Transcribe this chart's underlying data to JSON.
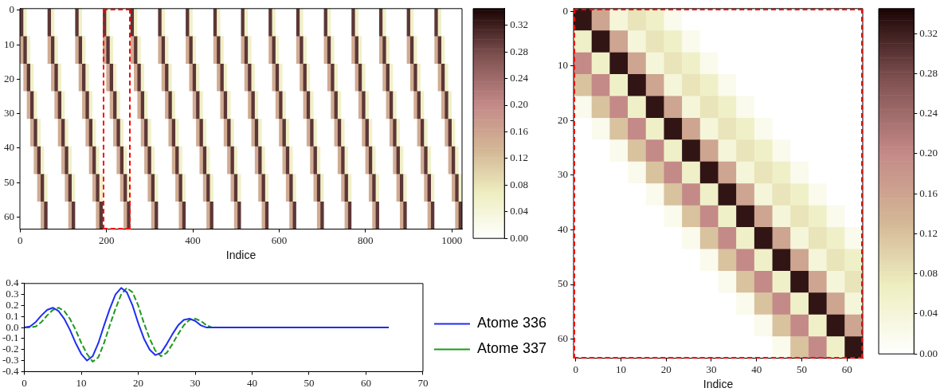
{
  "chart_data": [
    {
      "type": "heatmap",
      "xlabel": "Indice",
      "xlim": [
        -0.5,
        1023.5
      ],
      "xticks": [
        0,
        200,
        400,
        600,
        800,
        1000
      ],
      "ylim": [
        63.5,
        -0.5
      ],
      "yticks": [
        0,
        10,
        20,
        30,
        40,
        50,
        60
      ],
      "clim": [
        0,
        0.345
      ],
      "cticks": [
        {
          "value": 0,
          "label": "0.00"
        },
        {
          "value": 0.04,
          "label": "0.04"
        },
        {
          "value": 0.08,
          "label": "0.08"
        },
        {
          "value": 0.12,
          "label": "0.12"
        },
        {
          "value": 0.16,
          "label": "0.16"
        },
        {
          "value": 0.2,
          "label": "0.20"
        },
        {
          "value": 0.24,
          "label": "0.24"
        },
        {
          "value": 0.28,
          "label": "0.28"
        },
        {
          "value": 0.32,
          "label": "0.32"
        }
      ],
      "cells": [
        [
          0.3,
          0.06,
          0,
          0,
          0,
          0,
          0,
          0,
          0.3,
          0.06,
          0,
          0,
          0,
          0,
          0,
          0,
          0.3,
          0.06,
          0,
          0,
          0,
          0,
          0,
          0,
          0.3,
          0.06,
          0,
          0,
          0,
          0,
          0,
          0,
          0.3,
          0.06,
          0,
          0,
          0,
          0,
          0,
          0,
          0.3,
          0.06,
          0,
          0,
          0,
          0,
          0,
          0,
          0.3,
          0.06,
          0,
          0,
          0,
          0,
          0,
          0,
          0.3,
          0.06,
          0,
          0,
          0,
          0,
          0,
          0,
          0.3,
          0.06,
          0,
          0,
          0,
          0,
          0,
          0,
          0.3,
          0.06,
          0,
          0,
          0,
          0,
          0,
          0,
          0.3,
          0.06,
          0,
          0,
          0,
          0,
          0,
          0,
          0.3,
          0.06,
          0,
          0,
          0,
          0,
          0,
          0,
          0.3,
          0.06,
          0,
          0,
          0,
          0,
          0,
          0,
          0.3,
          0.06,
          0,
          0,
          0,
          0,
          0,
          0,
          0.3,
          0.06,
          0,
          0,
          0,
          0,
          0,
          0,
          0.3,
          0.06,
          0,
          0,
          0,
          0,
          0,
          0
        ],
        [
          0.15,
          0.3,
          0.06,
          0,
          0,
          0,
          0,
          0,
          0.15,
          0.3,
          0.06,
          0,
          0,
          0,
          0,
          0,
          0.15,
          0.3,
          0.06,
          0,
          0,
          0,
          0,
          0,
          0.15,
          0.3,
          0.06,
          0,
          0,
          0,
          0,
          0,
          0.15,
          0.3,
          0.06,
          0,
          0,
          0,
          0,
          0,
          0.15,
          0.3,
          0.06,
          0,
          0,
          0,
          0,
          0,
          0.15,
          0.3,
          0.06,
          0,
          0,
          0,
          0,
          0,
          0.15,
          0.3,
          0.06,
          0,
          0,
          0,
          0,
          0,
          0.15,
          0.3,
          0.06,
          0,
          0,
          0,
          0,
          0,
          0.15,
          0.3,
          0.06,
          0,
          0,
          0,
          0,
          0,
          0.15,
          0.3,
          0.06,
          0,
          0,
          0,
          0,
          0,
          0.15,
          0.3,
          0.06,
          0,
          0,
          0,
          0,
          0,
          0.15,
          0.3,
          0.06,
          0,
          0,
          0,
          0,
          0,
          0.15,
          0.3,
          0.06,
          0,
          0,
          0,
          0,
          0,
          0.15,
          0.3,
          0.06,
          0,
          0,
          0,
          0,
          0,
          0.15,
          0.3,
          0.06,
          0,
          0,
          0,
          0,
          0
        ],
        [
          0,
          0.15,
          0.3,
          0.06,
          0,
          0,
          0,
          0,
          0,
          0.15,
          0.3,
          0.06,
          0,
          0,
          0,
          0,
          0,
          0.15,
          0.3,
          0.06,
          0,
          0,
          0,
          0,
          0,
          0.15,
          0.3,
          0.06,
          0,
          0,
          0,
          0,
          0,
          0.15,
          0.3,
          0.06,
          0,
          0,
          0,
          0,
          0,
          0.15,
          0.3,
          0.06,
          0,
          0,
          0,
          0,
          0,
          0.15,
          0.3,
          0.06,
          0,
          0,
          0,
          0,
          0,
          0.15,
          0.3,
          0.06,
          0,
          0,
          0,
          0,
          0,
          0.15,
          0.3,
          0.06,
          0,
          0,
          0,
          0,
          0,
          0.15,
          0.3,
          0.06,
          0,
          0,
          0,
          0,
          0,
          0.15,
          0.3,
          0.06,
          0,
          0,
          0,
          0,
          0,
          0.15,
          0.3,
          0.06,
          0,
          0,
          0,
          0,
          0,
          0.15,
          0.3,
          0.06,
          0,
          0,
          0,
          0,
          0,
          0.15,
          0.3,
          0.06,
          0,
          0,
          0,
          0,
          0,
          0.15,
          0.3,
          0.06,
          0,
          0,
          0,
          0,
          0,
          0.15,
          0.3,
          0.06,
          0,
          0,
          0,
          0
        ],
        [
          0,
          0,
          0.15,
          0.3,
          0.06,
          0,
          0,
          0,
          0,
          0,
          0.15,
          0.3,
          0.06,
          0,
          0,
          0,
          0,
          0,
          0.15,
          0.3,
          0.06,
          0,
          0,
          0,
          0,
          0,
          0.15,
          0.3,
          0.06,
          0,
          0,
          0,
          0,
          0,
          0.15,
          0.3,
          0.06,
          0,
          0,
          0,
          0,
          0,
          0.15,
          0.3,
          0.06,
          0,
          0,
          0,
          0,
          0,
          0.15,
          0.3,
          0.06,
          0,
          0,
          0,
          0,
          0,
          0.15,
          0.3,
          0.06,
          0,
          0,
          0,
          0,
          0,
          0.15,
          0.3,
          0.06,
          0,
          0,
          0,
          0,
          0,
          0.15,
          0.3,
          0.06,
          0,
          0,
          0,
          0,
          0,
          0.15,
          0.3,
          0.06,
          0,
          0,
          0,
          0,
          0,
          0.15,
          0.3,
          0.06,
          0,
          0,
          0,
          0,
          0,
          0.15,
          0.3,
          0.06,
          0,
          0,
          0,
          0,
          0,
          0.15,
          0.3,
          0.06,
          0,
          0,
          0,
          0,
          0,
          0.15,
          0.3,
          0.06,
          0,
          0,
          0,
          0,
          0,
          0.15,
          0.3,
          0.06,
          0,
          0,
          0
        ],
        [
          0,
          0,
          0,
          0.15,
          0.3,
          0.06,
          0,
          0,
          0,
          0,
          0,
          0.15,
          0.3,
          0.06,
          0,
          0,
          0,
          0,
          0,
          0.15,
          0.3,
          0.06,
          0,
          0,
          0,
          0,
          0,
          0.15,
          0.3,
          0.06,
          0,
          0,
          0,
          0,
          0,
          0.15,
          0.3,
          0.06,
          0,
          0,
          0,
          0,
          0,
          0.15,
          0.3,
          0.06,
          0,
          0,
          0,
          0,
          0,
          0.15,
          0.3,
          0.06,
          0,
          0,
          0,
          0,
          0,
          0.15,
          0.3,
          0.06,
          0,
          0,
          0,
          0,
          0,
          0.15,
          0.3,
          0.06,
          0,
          0,
          0,
          0,
          0,
          0.15,
          0.3,
          0.06,
          0,
          0,
          0,
          0,
          0,
          0.15,
          0.3,
          0.06,
          0,
          0,
          0,
          0,
          0,
          0.15,
          0.3,
          0.06,
          0,
          0,
          0,
          0,
          0,
          0.15,
          0.3,
          0.06,
          0,
          0,
          0,
          0,
          0,
          0.15,
          0.3,
          0.06,
          0,
          0,
          0,
          0,
          0,
          0.15,
          0.3,
          0.06,
          0,
          0,
          0,
          0,
          0,
          0.15,
          0.3,
          0.06,
          0,
          0
        ],
        [
          0,
          0,
          0,
          0,
          0.15,
          0.3,
          0.06,
          0,
          0,
          0,
          0,
          0,
          0.15,
          0.3,
          0.06,
          0,
          0,
          0,
          0,
          0,
          0.15,
          0.3,
          0.06,
          0,
          0,
          0,
          0,
          0,
          0.15,
          0.3,
          0.06,
          0,
          0,
          0,
          0,
          0,
          0.15,
          0.3,
          0.06,
          0,
          0,
          0,
          0,
          0,
          0.15,
          0.3,
          0.06,
          0,
          0,
          0,
          0,
          0,
          0.15,
          0.3,
          0.06,
          0,
          0,
          0,
          0,
          0,
          0.15,
          0.3,
          0.06,
          0,
          0,
          0,
          0,
          0,
          0.15,
          0.3,
          0.06,
          0,
          0,
          0,
          0,
          0,
          0.15,
          0.3,
          0.06,
          0,
          0,
          0,
          0,
          0,
          0.15,
          0.3,
          0.06,
          0,
          0,
          0,
          0,
          0,
          0.15,
          0.3,
          0.06,
          0,
          0,
          0,
          0,
          0,
          0.15,
          0.3,
          0.06,
          0,
          0,
          0,
          0,
          0,
          0.15,
          0.3,
          0.06,
          0,
          0,
          0,
          0,
          0,
          0.15,
          0.3,
          0.06,
          0,
          0,
          0,
          0,
          0,
          0.15,
          0.3,
          0.06,
          0
        ],
        [
          0,
          0,
          0,
          0,
          0,
          0.15,
          0.3,
          0.06,
          0,
          0,
          0,
          0,
          0,
          0.15,
          0.3,
          0.06,
          0,
          0,
          0,
          0,
          0,
          0.15,
          0.3,
          0.06,
          0,
          0,
          0,
          0,
          0,
          0.15,
          0.3,
          0.06,
          0,
          0,
          0,
          0,
          0,
          0.15,
          0.3,
          0.06,
          0,
          0,
          0,
          0,
          0,
          0.15,
          0.3,
          0.06,
          0,
          0,
          0,
          0,
          0,
          0.15,
          0.3,
          0.06,
          0,
          0,
          0,
          0,
          0,
          0.15,
          0.3,
          0.06,
          0,
          0,
          0,
          0,
          0,
          0.15,
          0.3,
          0.06,
          0,
          0,
          0,
          0,
          0,
          0.15,
          0.3,
          0.06,
          0,
          0,
          0,
          0,
          0,
          0.15,
          0.3,
          0.06,
          0,
          0,
          0,
          0,
          0,
          0.15,
          0.3,
          0.06,
          0,
          0,
          0,
          0,
          0,
          0.15,
          0.3,
          0.06,
          0,
          0,
          0,
          0,
          0,
          0.15,
          0.3,
          0.06,
          0,
          0,
          0,
          0,
          0,
          0.15,
          0.3,
          0.06,
          0,
          0,
          0,
          0,
          0,
          0.15,
          0.3,
          0.06
        ],
        [
          0,
          0,
          0,
          0,
          0,
          0,
          0.15,
          0.3,
          0,
          0,
          0,
          0,
          0,
          0,
          0.15,
          0.3,
          0,
          0,
          0,
          0,
          0,
          0,
          0.15,
          0.3,
          0,
          0,
          0,
          0,
          0,
          0,
          0.15,
          0.3,
          0,
          0,
          0,
          0,
          0,
          0,
          0.15,
          0.3,
          0,
          0,
          0,
          0,
          0,
          0,
          0.15,
          0.3,
          0,
          0,
          0,
          0,
          0,
          0,
          0.15,
          0.3,
          0,
          0,
          0,
          0,
          0,
          0,
          0.15,
          0.3,
          0,
          0,
          0,
          0,
          0,
          0,
          0.15,
          0.3,
          0,
          0,
          0,
          0,
          0,
          0,
          0.15,
          0.3,
          0,
          0,
          0,
          0,
          0,
          0,
          0.15,
          0.3,
          0,
          0,
          0,
          0,
          0,
          0,
          0.15,
          0.3,
          0,
          0,
          0,
          0,
          0,
          0,
          0.15,
          0.3,
          0,
          0,
          0,
          0,
          0,
          0,
          0.15,
          0.3,
          0,
          0,
          0,
          0,
          0,
          0,
          0.15,
          0.3,
          0,
          0,
          0,
          0,
          0,
          0,
          0.15,
          0.3
        ]
      ]
    },
    {
      "type": "line",
      "xlim": [
        0,
        70
      ],
      "xticks": [
        0,
        10,
        20,
        30,
        40,
        50,
        60,
        70
      ],
      "ylim": [
        -0.4,
        0.4
      ],
      "yticks": [
        -0.4,
        -0.3,
        -0.2,
        -0.1,
        {
          "value": 0,
          "label": "0.0"
        },
        0.1,
        0.2,
        0.3,
        0.4
      ],
      "legend": "right",
      "marker": "none",
      "x": [
        0,
        1,
        2,
        3,
        4,
        5,
        6,
        7,
        8,
        9,
        10,
        11,
        12,
        13,
        14,
        15,
        16,
        17,
        18,
        19,
        20,
        21,
        22,
        23,
        24,
        25,
        26,
        27,
        28,
        29,
        30,
        31,
        32,
        33,
        64
      ],
      "series": [
        {
          "name": "Atome 336",
          "color": "#1f2ff0",
          "line_style": "solid",
          "values": [
            0,
            0.01,
            0.05,
            0.11,
            0.16,
            0.18,
            0.15,
            0.08,
            -0.02,
            -0.14,
            -0.24,
            -0.3,
            -0.26,
            -0.14,
            0.02,
            0.17,
            0.3,
            0.36,
            0.32,
            0.2,
            0.04,
            -0.1,
            -0.2,
            -0.25,
            -0.23,
            -0.15,
            -0.06,
            0.02,
            0.07,
            0.08,
            0.06,
            0.02,
            0,
            0,
            0
          ]
        },
        {
          "name": "Atome 337",
          "color": "#1e9a1e",
          "line_style": "dashed",
          "values": [
            0,
            0,
            0.01,
            0.05,
            0.11,
            0.16,
            0.18,
            0.15,
            0.08,
            -0.02,
            -0.14,
            -0.24,
            -0.31,
            -0.27,
            -0.14,
            0.02,
            0.17,
            0.3,
            0.36,
            0.32,
            0.2,
            0.04,
            -0.1,
            -0.21,
            -0.26,
            -0.23,
            -0.15,
            -0.06,
            0.02,
            0.07,
            0.08,
            0.06,
            0.02,
            0,
            null
          ]
        }
      ]
    },
    {
      "type": "heatmap",
      "xlabel": "Indice",
      "xlim": [
        -0.5,
        63.5
      ],
      "xticks": [
        0,
        10,
        20,
        30,
        40,
        50,
        60
      ],
      "ylim": [
        63.5,
        -0.5
      ],
      "yticks": [
        0,
        10,
        20,
        30,
        40,
        50,
        60
      ],
      "clim": [
        0,
        0.345
      ],
      "cticks": [
        {
          "value": 0,
          "label": "0.00"
        },
        {
          "value": 0.04,
          "label": "0.04"
        },
        {
          "value": 0.08,
          "label": "0.08"
        },
        {
          "value": 0.12,
          "label": "0.12"
        },
        {
          "value": 0.16,
          "label": "0.16"
        },
        {
          "value": 0.2,
          "label": "0.20"
        },
        {
          "value": 0.24,
          "label": "0.24"
        },
        {
          "value": 0.28,
          "label": "0.28"
        },
        {
          "value": 0.32,
          "label": "0.32"
        }
      ],
      "cells": [
        [
          0.33,
          0.16,
          0.04,
          0.08,
          0.06,
          0.02,
          0,
          0,
          0,
          0,
          0,
          0,
          0,
          0,
          0,
          0
        ],
        [
          0.06,
          0.33,
          0.16,
          0.04,
          0.08,
          0.06,
          0.02,
          0,
          0,
          0,
          0,
          0,
          0,
          0,
          0,
          0
        ],
        [
          0.2,
          0.06,
          0.33,
          0.16,
          0.04,
          0.08,
          0.06,
          0.02,
          0,
          0,
          0,
          0,
          0,
          0,
          0,
          0
        ],
        [
          0.12,
          0.2,
          0.06,
          0.33,
          0.16,
          0.04,
          0.08,
          0.06,
          0.02,
          0,
          0,
          0,
          0,
          0,
          0,
          0
        ],
        [
          0.02,
          0.12,
          0.2,
          0.06,
          0.33,
          0.16,
          0.04,
          0.08,
          0.06,
          0.02,
          0,
          0,
          0,
          0,
          0,
          0
        ],
        [
          0,
          0.02,
          0.12,
          0.2,
          0.06,
          0.33,
          0.16,
          0.04,
          0.08,
          0.06,
          0.02,
          0,
          0,
          0,
          0,
          0
        ],
        [
          0,
          0,
          0.02,
          0.12,
          0.2,
          0.06,
          0.33,
          0.16,
          0.04,
          0.08,
          0.06,
          0.02,
          0,
          0,
          0,
          0
        ],
        [
          0,
          0,
          0,
          0.02,
          0.12,
          0.2,
          0.06,
          0.33,
          0.16,
          0.04,
          0.08,
          0.06,
          0.02,
          0,
          0,
          0
        ],
        [
          0,
          0,
          0,
          0,
          0.02,
          0.12,
          0.2,
          0.06,
          0.33,
          0.16,
          0.04,
          0.08,
          0.06,
          0.02,
          0,
          0
        ],
        [
          0,
          0,
          0,
          0,
          0,
          0.02,
          0.12,
          0.2,
          0.06,
          0.33,
          0.16,
          0.04,
          0.08,
          0.06,
          0.02,
          0
        ],
        [
          0,
          0,
          0,
          0,
          0,
          0,
          0.02,
          0.12,
          0.2,
          0.06,
          0.33,
          0.16,
          0.04,
          0.08,
          0.06,
          0.02
        ],
        [
          0,
          0,
          0,
          0,
          0,
          0,
          0,
          0.02,
          0.12,
          0.2,
          0.06,
          0.33,
          0.16,
          0.04,
          0.08,
          0.06
        ],
        [
          0,
          0,
          0,
          0,
          0,
          0,
          0,
          0,
          0.02,
          0.12,
          0.2,
          0.06,
          0.33,
          0.16,
          0.04,
          0.08
        ],
        [
          0,
          0,
          0,
          0,
          0,
          0,
          0,
          0,
          0,
          0.02,
          0.12,
          0.2,
          0.06,
          0.33,
          0.16,
          0.04
        ],
        [
          0,
          0,
          0,
          0,
          0,
          0,
          0,
          0,
          0,
          0,
          0.02,
          0.12,
          0.2,
          0.06,
          0.33,
          0.16
        ],
        [
          0,
          0,
          0,
          0,
          0,
          0,
          0,
          0,
          0,
          0,
          0,
          0.02,
          0.12,
          0.2,
          0.06,
          0.33
        ]
      ]
    }
  ]
}
